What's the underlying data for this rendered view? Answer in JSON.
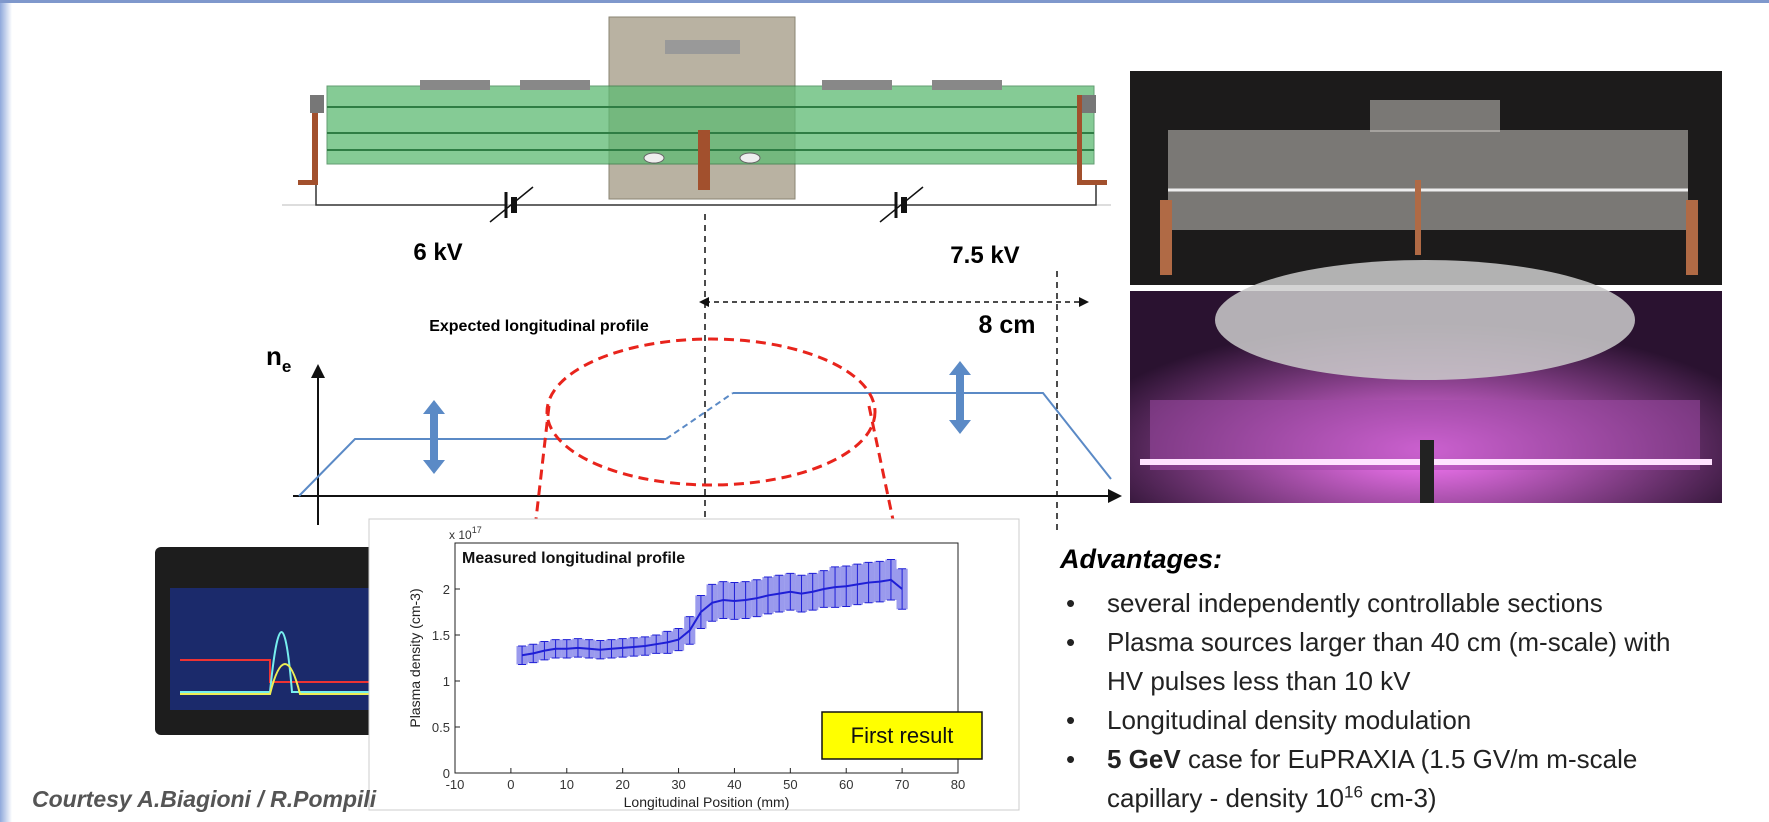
{
  "drawing": {
    "voltage_left": "6 kV",
    "voltage_right": "7.5 kV",
    "distance": "8 cm",
    "expected_title": "Expected longitudinal profile",
    "density_symbol": "n",
    "density_subscript": "e"
  },
  "measured_chart": {
    "type": "line",
    "title": "Measured longitudinal profile",
    "x_label": "Longitudinal Position (mm)",
    "y_label": "Plasma density (cm-3)",
    "scale_label": "x 10",
    "scale_exponent": "17",
    "annotation": "First result",
    "color": "#1f1fd6",
    "x": [
      2,
      4,
      6,
      8,
      10,
      12,
      14,
      16,
      18,
      20,
      22,
      24,
      26,
      28,
      30,
      32,
      34,
      36,
      38,
      40,
      42,
      44,
      46,
      48,
      50,
      52,
      54,
      56,
      58,
      60,
      62,
      64,
      66,
      68,
      70
    ],
    "values": [
      1.28,
      1.3,
      1.33,
      1.35,
      1.35,
      1.36,
      1.35,
      1.34,
      1.35,
      1.36,
      1.37,
      1.38,
      1.4,
      1.42,
      1.45,
      1.55,
      1.75,
      1.85,
      1.88,
      1.87,
      1.88,
      1.9,
      1.93,
      1.95,
      1.97,
      1.95,
      1.97,
      2.0,
      2.02,
      2.03,
      2.05,
      2.07,
      2.08,
      2.1,
      2.0
    ],
    "errors": [
      0.1,
      0.1,
      0.1,
      0.1,
      0.1,
      0.1,
      0.1,
      0.1,
      0.1,
      0.1,
      0.1,
      0.1,
      0.1,
      0.12,
      0.12,
      0.15,
      0.18,
      0.2,
      0.2,
      0.2,
      0.2,
      0.2,
      0.2,
      0.2,
      0.2,
      0.2,
      0.2,
      0.2,
      0.22,
      0.22,
      0.22,
      0.22,
      0.22,
      0.22,
      0.22
    ],
    "xlim": [
      -10,
      80
    ],
    "xticks": [
      -10,
      0,
      10,
      20,
      30,
      40,
      50,
      60,
      70,
      80
    ],
    "ylim": [
      0,
      2.5
    ],
    "yticks": [
      0,
      0.5,
      1,
      1.5,
      2
    ]
  },
  "advantages": {
    "title": "Advantages:",
    "items": [
      "several independently controllable sections",
      "Plasma sources larger than 40 cm (m-scale) with HV pulses less than 10 kV",
      "Longitudinal density modulation",
      {
        "bold": "5 GeV",
        "text": " case for EuPRAXIA (1.5 GV/m  m-scale capillary - density 10",
        "sup": "16",
        "tail": " cm-3)"
      }
    ]
  },
  "credit": "Courtesy A.Biagioni / R.Pompili"
}
